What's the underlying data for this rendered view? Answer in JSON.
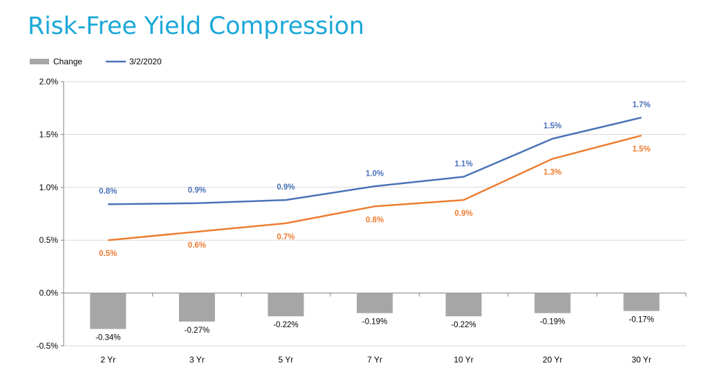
{
  "title": "Risk-Free Yield Compression",
  "chart_data": {
    "type": "bar",
    "categories": [
      "2 Yr",
      "3 Yr",
      "5 Yr",
      "7 Yr",
      "10 Yr",
      "20 Yr",
      "30 Yr"
    ],
    "ylim": [
      -0.5,
      2.0
    ],
    "yticks": [
      "-0.5%",
      "0.0%",
      "0.5%",
      "1.0%",
      "1.5%",
      "2.0%"
    ],
    "ytick_values": [
      -0.5,
      0.0,
      0.5,
      1.0,
      1.5,
      2.0
    ],
    "legend": [
      {
        "name": "Change",
        "type": "bar",
        "color": "#a6a6a6"
      },
      {
        "name": "3/2/2020",
        "type": "line",
        "color": "#4a72b8"
      }
    ],
    "legend_position": "top-left",
    "series": [
      {
        "name": "Change",
        "type": "bar",
        "color": "#a6a6a6",
        "values": [
          -0.34,
          -0.27,
          -0.22,
          -0.19,
          -0.22,
          -0.19,
          -0.17
        ],
        "labels": [
          "-0.34%",
          "-0.27%",
          "-0.22%",
          "-0.19%",
          "-0.22%",
          "-0.19%",
          "-0.17%"
        ]
      },
      {
        "name": "3/2/2020",
        "type": "line",
        "color": "#4a72b8",
        "values": [
          0.84,
          0.85,
          0.88,
          1.01,
          1.1,
          1.46,
          1.66
        ],
        "labels": [
          "0.8%",
          "0.9%",
          "0.9%",
          "1.0%",
          "1.1%",
          "1.5%",
          "1.7%"
        ]
      },
      {
        "type": "line",
        "color": "#ed7d31",
        "values": [
          0.5,
          0.58,
          0.66,
          0.82,
          0.88,
          1.27,
          1.49
        ],
        "labels": [
          "0.5%",
          "0.6%",
          "0.7%",
          "0.8%",
          "0.9%",
          "1.3%",
          "1.5%"
        ]
      }
    ],
    "grid": true
  }
}
